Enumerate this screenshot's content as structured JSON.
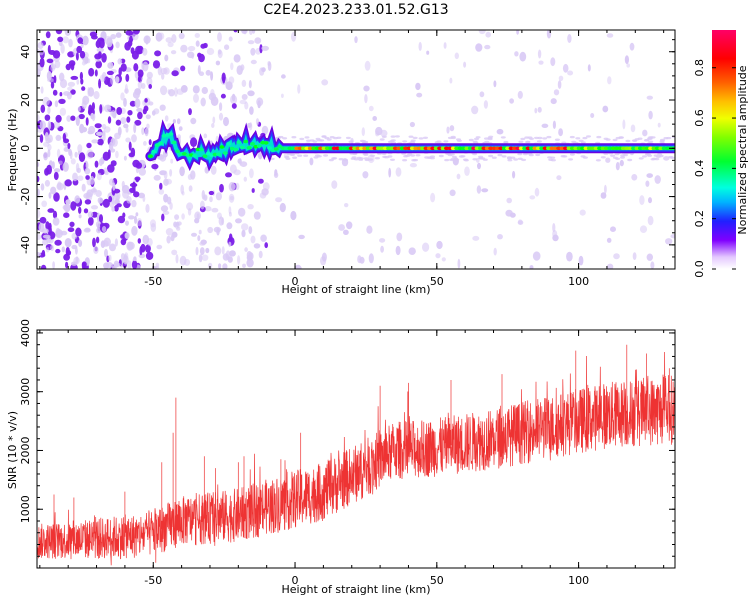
{
  "title": "C2E4.2023.233.01.52.G13",
  "colors": {
    "signal": "#ee3333",
    "scatter_main": "#7a1ee8",
    "scatter_light": "#d9c9f5",
    "axis": "#000000"
  },
  "chart_data": [
    {
      "type": "heatmap",
      "xlabel": "Height of straight line (km)",
      "ylabel": "Frequency (Hz)",
      "xlim": [
        -91,
        134
      ],
      "ylim": [
        -50,
        49
      ],
      "x_ticks": [
        -50,
        0,
        50,
        100
      ],
      "y_ticks": [
        40,
        20,
        0,
        -20,
        -40
      ],
      "colorbar": {
        "label": "Normalized spectral amplitude",
        "ticks": [
          "0.0",
          "0.2",
          "0.4",
          "0.6",
          "0.8"
        ],
        "tick_values": [
          0.0,
          0.2,
          0.4,
          0.6,
          0.8
        ],
        "range": [
          0,
          0.95
        ],
        "colormap": "rainbow"
      },
      "ridge": [
        {
          "x": -51,
          "y": -4
        },
        {
          "x": -47,
          "y": 3
        },
        {
          "x": -44,
          "y": 5
        },
        {
          "x": -42,
          "y": -1
        },
        {
          "x": -38,
          "y": -3
        },
        {
          "x": -34,
          "y": -2
        },
        {
          "x": -30,
          "y": -3
        },
        {
          "x": -26,
          "y": -1
        },
        {
          "x": -22,
          "y": 1
        },
        {
          "x": -18,
          "y": 1
        },
        {
          "x": -14,
          "y": 2
        },
        {
          "x": -10,
          "y": 1
        },
        {
          "x": -6,
          "y": 0
        },
        {
          "x": 0,
          "y": 0
        },
        {
          "x": 134,
          "y": 0
        }
      ],
      "scatter_regions": [
        {
          "xmin": -91,
          "xmax": -51,
          "density": "high"
        },
        {
          "xmin": -51,
          "xmax": -10,
          "density": "medium"
        },
        {
          "xmin": -10,
          "xmax": 134,
          "density": "low"
        }
      ]
    },
    {
      "type": "line",
      "xlabel": "Height of straight line (km)",
      "ylabel": "SNR (10 * v/v)",
      "xlim": [
        -91,
        134
      ],
      "ylim": [
        0,
        4050
      ],
      "x_ticks": [
        -50,
        0,
        50,
        100
      ],
      "y_ticks": [
        1000,
        2000,
        3000,
        4000
      ],
      "trend": [
        {
          "x": -91,
          "y": 450
        },
        {
          "x": -70,
          "y": 500
        },
        {
          "x": -55,
          "y": 550
        },
        {
          "x": -50,
          "y": 600
        },
        {
          "x": -40,
          "y": 800
        },
        {
          "x": -20,
          "y": 900
        },
        {
          "x": -5,
          "y": 1100
        },
        {
          "x": 10,
          "y": 1300
        },
        {
          "x": 25,
          "y": 1700
        },
        {
          "x": 35,
          "y": 2000
        },
        {
          "x": 50,
          "y": 2050
        },
        {
          "x": 70,
          "y": 2200
        },
        {
          "x": 90,
          "y": 2400
        },
        {
          "x": 110,
          "y": 2600
        },
        {
          "x": 134,
          "y": 2700
        }
      ],
      "noise_amplitude": [
        {
          "x": -91,
          "y": 300
        },
        {
          "x": -50,
          "y": 400
        },
        {
          "x": 0,
          "y": 500
        },
        {
          "x": 50,
          "y": 500
        },
        {
          "x": 134,
          "y": 600
        }
      ],
      "spikes": [
        {
          "x": -85,
          "y": 1250
        },
        {
          "x": -78,
          "y": 1200
        },
        {
          "x": -60,
          "y": 1300
        },
        {
          "x": -42,
          "y": 2900
        },
        {
          "x": -43,
          "y": 2300
        },
        {
          "x": -47,
          "y": 1800
        },
        {
          "x": -32,
          "y": 1900
        },
        {
          "x": -28,
          "y": 1700
        },
        {
          "x": -20,
          "y": 1800
        },
        {
          "x": -18,
          "y": 1900
        },
        {
          "x": -5,
          "y": 1850
        },
        {
          "x": 2,
          "y": 2300
        },
        {
          "x": 30,
          "y": 3100
        },
        {
          "x": 40,
          "y": 3150
        },
        {
          "x": 55,
          "y": 3200
        },
        {
          "x": 73,
          "y": 3300
        },
        {
          "x": 99,
          "y": 3700
        },
        {
          "x": 117,
          "y": 3800
        },
        {
          "x": 124,
          "y": 3650
        },
        {
          "x": 132,
          "y": 3400
        }
      ]
    }
  ]
}
